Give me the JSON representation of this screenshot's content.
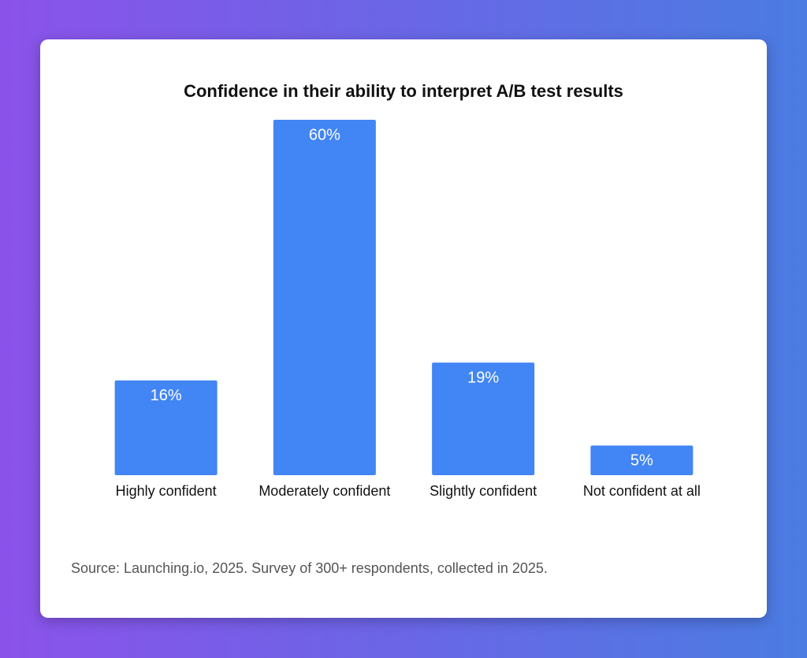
{
  "chart_data": {
    "type": "bar",
    "title": "Confidence in their ability to interpret A/B test results",
    "categories": [
      "Highly confident",
      "Moderately confident",
      "Slightly confident",
      "Not confident at all"
    ],
    "values": [
      16,
      60,
      19,
      5
    ],
    "value_labels": [
      "16%",
      "60%",
      "19%",
      "5%"
    ],
    "color": "#4285f4",
    "source": "Source: Launching.io, 2025. Survey of 300+ respondents, collected in 2025."
  }
}
